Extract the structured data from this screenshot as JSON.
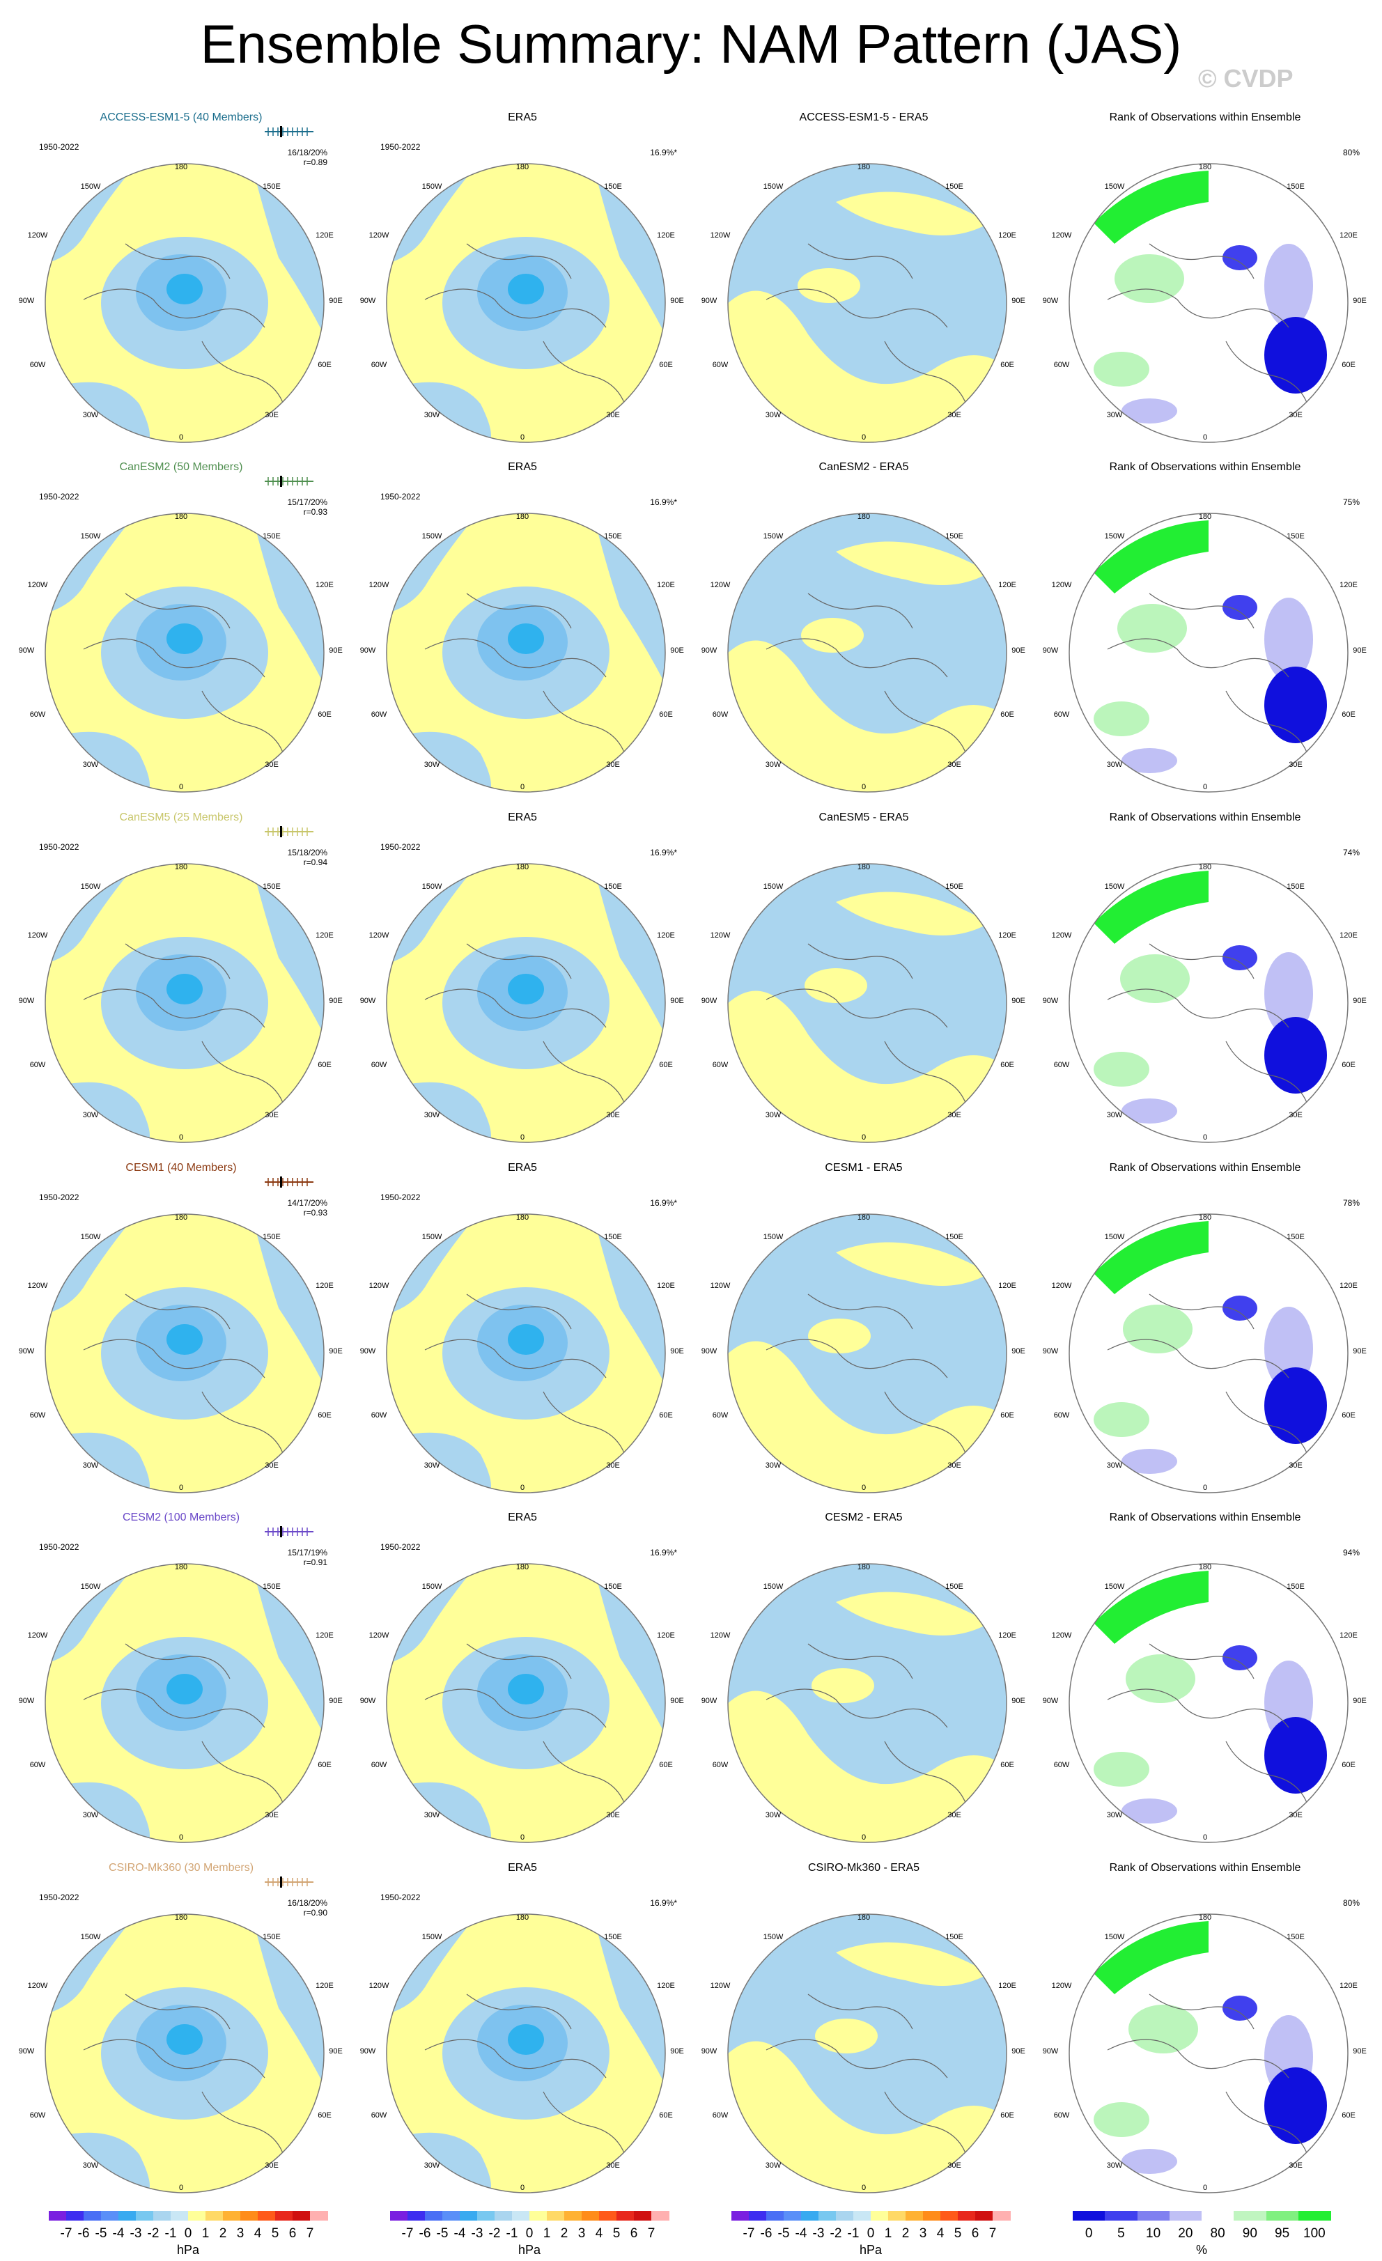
{
  "title": "Ensemble Summary: NAM Pattern (JAS)",
  "watermark": "© CVDP",
  "colors": {
    "pos": "#ffff99",
    "neg": "#aad5ef",
    "neg2": "#7ec2ef",
    "neg3": "#2fb2ee",
    "high_rank": "#22ee33",
    "mid_rank": "#bbf5bb",
    "low_rank": "#1010dd"
  },
  "degree_labels": {
    "top": "180",
    "bottom": "0",
    "left": "90W",
    "right": "90E",
    "ul1": "150W",
    "ul2": "120W",
    "ur1": "150E",
    "ur2": "120E",
    "ll1": "60W",
    "ll2": "30W",
    "lr1": "60E",
    "lr2": "30E"
  },
  "era_label": "ERA5",
  "era_pct": "16.9%*",
  "years": "1950-2022",
  "rank_title": "Rank of Observations within Ensemble",
  "rows": [
    {
      "model_title": "ACCESS-ESM1-5 (40 Members)",
      "title_color": "#1a6d8c",
      "stats": "16/18/20%",
      "r": "r=0.89",
      "diff_title": "ACCESS-ESM1-5 - ERA5",
      "rank_pct": "80%"
    },
    {
      "model_title": "CanESM2 (50 Members)",
      "title_color": "#4f8f4f",
      "stats": "15/17/20%",
      "r": "r=0.93",
      "diff_title": "CanESM2 - ERA5",
      "rank_pct": "75%"
    },
    {
      "model_title": "CanESM5 (25 Members)",
      "title_color": "#c8c66a",
      "stats": "15/18/20%",
      "r": "r=0.94",
      "diff_title": "CanESM5 - ERA5",
      "rank_pct": "74%"
    },
    {
      "model_title": "CESM1 (40 Members)",
      "title_color": "#8c3a12",
      "stats": "14/17/20%",
      "r": "r=0.93",
      "diff_title": "CESM1 - ERA5",
      "rank_pct": "78%"
    },
    {
      "model_title": "CESM2 (100 Members)",
      "title_color": "#6a48c8",
      "stats": "15/17/19%",
      "r": "r=0.91",
      "diff_title": "CESM2 - ERA5",
      "rank_pct": "94%"
    },
    {
      "model_title": "CSIRO-Mk360 (30 Members)",
      "title_color": "#d2a574",
      "stats": "16/18/20%",
      "r": "r=0.90",
      "diff_title": "CSIRO-Mk360 - ERA5",
      "rank_pct": "80%"
    }
  ],
  "colorbar_hpa": {
    "ticks": [
      "-7",
      "-6",
      "-5",
      "-4",
      "-3",
      "-2",
      "-1",
      "0",
      "1",
      "2",
      "3",
      "4",
      "5",
      "6",
      "7"
    ],
    "unit": "hPa",
    "colors": [
      "#7a1fe0",
      "#3e2ef0",
      "#4a6ff5",
      "#5a8ff8",
      "#38aaf0",
      "#78c8f0",
      "#aad5ef",
      "#c9e7f5",
      "#ffff99",
      "#ffd966",
      "#ffb233",
      "#ff8c1a",
      "#ff5a1a",
      "#e8281c",
      "#d01010",
      "#ffb0b0"
    ]
  },
  "colorbar_pct": {
    "ticks": [
      "0",
      "5",
      "10",
      "20",
      "80",
      "90",
      "95",
      "100"
    ],
    "unit": "%",
    "colors": [
      "#1010dd",
      "#4040ee",
      "#8080f0",
      "#c0c0f5",
      "#ffffff",
      "#c0f5c0",
      "#80f080",
      "#22ee33"
    ]
  }
}
